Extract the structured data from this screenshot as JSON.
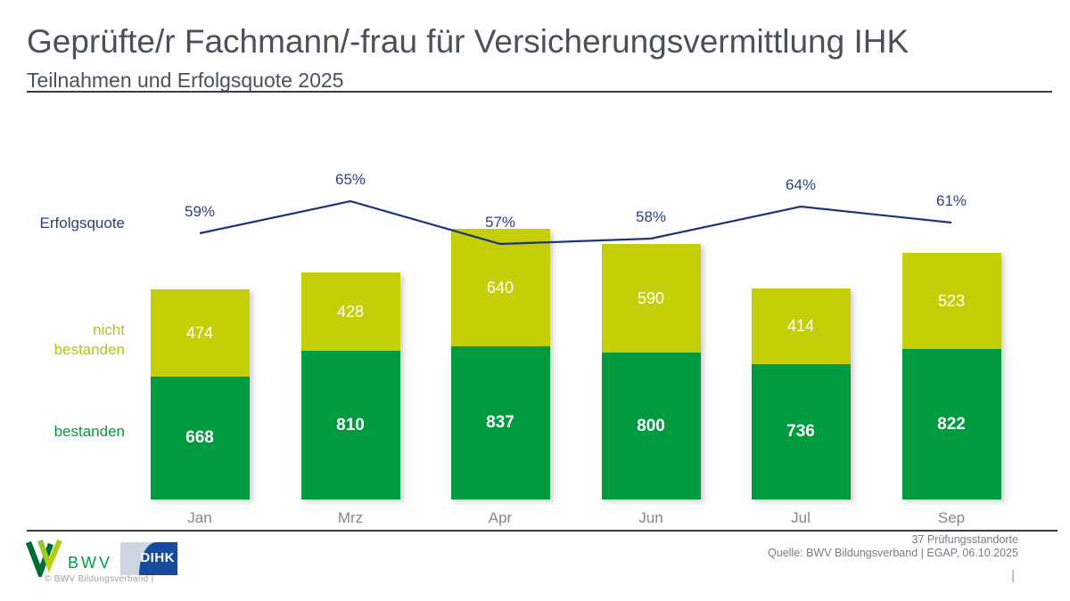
{
  "header": {
    "title": "Geprüfte/r Fachmann/-frau für Versicherungsvermittlung IHK",
    "subtitle": "Teilnahmen und Erfolgsquote 2025"
  },
  "chart_data": {
    "type": "bar",
    "stacked": true,
    "title": "Teilnahmen und Erfolgsquote 2025",
    "categories": [
      "Jan",
      "Mrz",
      "Apr",
      "Jun",
      "Jul",
      "Sep"
    ],
    "series": [
      {
        "name": "bestanden",
        "color": "#009B3E",
        "values": [
          668,
          810,
          837,
          800,
          736,
          822
        ]
      },
      {
        "name": "nicht bestanden",
        "color": "#C5CF08",
        "values": [
          474,
          428,
          640,
          590,
          414,
          523
        ]
      }
    ],
    "line": {
      "name": "Erfolgsquote",
      "color": "#1B3380",
      "unit": "%",
      "values": [
        59,
        65,
        57,
        58,
        64,
        61
      ]
    },
    "value_labels_shown": true,
    "legend_position": "left",
    "axes_hidden": true
  },
  "legend": {
    "line_label": "Erfolgsquote",
    "nicht_line1": "nicht",
    "nicht_line2": "bestanden",
    "bestanden_label": "bestanden"
  },
  "footer": {
    "right_line1": "37 Prüfungsstandorte",
    "right_line2": "Quelle: BWV Bildungsverband | EGAP, 06.10.2025",
    "page_separator": "|",
    "bwv_logo_text": "BWV",
    "bwv_copyright": "©  BWV Bildungsverband  |",
    "dihk_logo_text": "DIHK"
  }
}
